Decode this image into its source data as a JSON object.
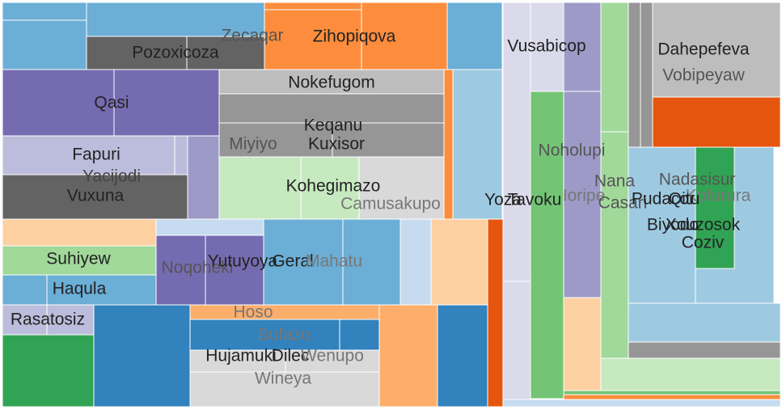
{
  "chart_data": {
    "type": "treemap",
    "title": "",
    "cells": [
      {
        "color": "#6baed6"
      },
      {
        "color": "#6baed6"
      },
      {
        "color": "#6baed6"
      },
      {
        "label": "Pozoxicoza",
        "color": "#636363"
      },
      {
        "label": "Zecaqar",
        "color": "#636363"
      },
      {
        "color": "#fd8d3c"
      },
      {
        "label": "Zihopiqova",
        "color": "#fd8d3c"
      },
      {
        "color": "#fd8d3c"
      },
      {
        "color": "#6baed6"
      },
      {
        "label": "Qasi",
        "color": "#756bb1"
      },
      {
        "color": "#756bb1"
      },
      {
        "label": "Nokefugom",
        "color": "#bdbdbd"
      },
      {
        "label": "Keqanu",
        "color": "#969696"
      },
      {
        "label": "Miyiyo",
        "color": "#969696"
      },
      {
        "label": "Kuxisor",
        "color": "#969696"
      },
      {
        "label": "Fapuri",
        "color": "#bcbddc"
      },
      {
        "color": "#bcbddc"
      },
      {
        "color": "#9e9ac8"
      },
      {
        "label": "Yacijodi",
        "color": "#636363"
      },
      {
        "label": "Vuxuna",
        "color": "#636363"
      },
      {
        "label": "Kohegimazo",
        "color": "#c7e9c0"
      },
      {
        "color": "#c7e9c0"
      },
      {
        "label": "Camusakupo",
        "color": "#d9d9d9"
      },
      {
        "color": "#fd8d3c"
      },
      {
        "color": "#9ecae1"
      },
      {
        "color": "#fdd0a2"
      },
      {
        "color": "#c6dbef"
      },
      {
        "label": "Suhiyew",
        "color": "#a1d99b"
      },
      {
        "color": "#a1d99b"
      },
      {
        "label": "Haqula",
        "color": "#6baed6"
      },
      {
        "color": "#6baed6"
      },
      {
        "label": "Noqoheki",
        "color": "#756bb1"
      },
      {
        "label": "Yutuyoya",
        "color": "#756bb1"
      },
      {
        "label": "Geral",
        "color": "#6baed6"
      },
      {
        "label": "Mahatu",
        "color": "#6baed6"
      },
      {
        "color": "#c6dbef"
      },
      {
        "color": "#fdd0a2"
      },
      {
        "color": "#e6550d"
      },
      {
        "label": "Rasatosiz",
        "color": "#bcbddc"
      },
      {
        "color": "#bcbddc"
      },
      {
        "color": "#31a354"
      },
      {
        "color": "#3182bd"
      },
      {
        "label": "Hoso",
        "color": "#fdae6b"
      },
      {
        "label": "Bufazo",
        "color": "#3182bd"
      },
      {
        "color": "#3182bd"
      },
      {
        "label": "Hujamuki",
        "color": "#d9d9d9"
      },
      {
        "label": "Dilec",
        "color": "#d9d9d9"
      },
      {
        "label": "Wenupo",
        "color": "#d9d9d9"
      },
      {
        "label": "Wineya",
        "color": "#d9d9d9"
      },
      {
        "color": "#fdae6b"
      },
      {
        "color": "#3182bd"
      },
      {
        "label": "Vusabicop",
        "color": "#dadaeb"
      },
      {
        "label": "Yoza",
        "color": "#dadaeb"
      },
      {
        "color": "#dadaeb"
      },
      {
        "label": "Tavoku",
        "color": "#74c476"
      },
      {
        "color": "#9e9ac8"
      },
      {
        "label": "Noholupi",
        "color": "#9e9ac8"
      },
      {
        "label": "Ioripe",
        "color": "#9e9ac8"
      },
      {
        "color": "#fdd0a2"
      },
      {
        "color": "#a1d99b"
      },
      {
        "label": "Nana",
        "color": "#a1d99b"
      },
      {
        "label": "Casari",
        "color": "#a1d99b"
      },
      {
        "color": "#969696"
      },
      {
        "color": "#969696"
      },
      {
        "color": "#969696"
      },
      {
        "label": "Dahepefeva",
        "color": "#bdbdbd"
      },
      {
        "label": "Vobipeyaw",
        "color": "#bdbdbd"
      },
      {
        "color": "#e6550d"
      },
      {
        "label": "Nadasisur",
        "color": "#9ecae1"
      },
      {
        "label": "Pudacor",
        "color": "#9ecae1"
      },
      {
        "label": "Kofurura",
        "color": "#9ecae1"
      },
      {
        "label": "Biyodo",
        "color": "#9ecae1"
      },
      {
        "label": "Qitu",
        "color": "#31a354"
      },
      {
        "label": "Xouzosok",
        "color": "#31a354"
      },
      {
        "label": "Coziv",
        "color": "#31a354"
      },
      {
        "color": "#9ecae1"
      },
      {
        "color": "#969696"
      },
      {
        "color": "#c7e9c0"
      },
      {
        "color": "#74c476"
      },
      {
        "color": "#fd8d3c"
      },
      {
        "color": "#c6dbef"
      }
    ]
  }
}
